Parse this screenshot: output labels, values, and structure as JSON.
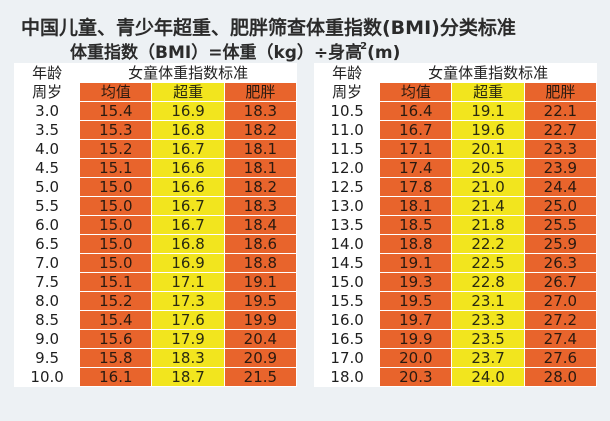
{
  "title": "中国儿童、青少年超重、肥胖筛查体重指数(BMI)分类标准",
  "formula": {
    "text": "体重指数（BMI）=体重（kg）÷身高",
    "exponent": "2",
    "unit": "(m)"
  },
  "boys_table": {
    "age_header": "年龄",
    "group_header": "",
    "sub_age": "周岁",
    "col_avg": "均值",
    "col_over": "超重",
    "col_obese": "肥胖",
    "rows": [
      [
        "3.0",
        "15.4",
        "16.9",
        "18.3"
      ],
      [
        "3.5",
        "15.3",
        "16.8",
        "18.2"
      ],
      [
        "4.0",
        "15.2",
        "16.7",
        "18.1"
      ],
      [
        "4.5",
        "15.1",
        "16.6",
        "18.1"
      ],
      [
        "5.0",
        "15.0",
        "16.6",
        "18.2"
      ],
      [
        "5.5",
        "15.0",
        "16.7",
        "18.3"
      ],
      [
        "6.0",
        "15.0",
        "16.7",
        "18.4"
      ],
      [
        "6.5",
        "15.0",
        "16.8",
        "18.6"
      ],
      [
        "7.0",
        "15.0",
        "16.9",
        "18.8"
      ],
      [
        "7.5",
        "15.1",
        "17.1",
        "19.1"
      ],
      [
        "8.0",
        "15.2",
        "17.3",
        "19.5"
      ],
      [
        "8.5",
        "15.4",
        "17.6",
        "19.9"
      ],
      [
        "9.0",
        "15.6",
        "17.9",
        "20.4"
      ],
      [
        "9.5",
        "15.8",
        "18.3",
        "20.9"
      ],
      [
        "10.0",
        "16.1",
        "18.7",
        "21.5"
      ]
    ]
  },
  "girls_table": {
    "age_header": "年龄",
    "group_header": "女童体重指数标准",
    "sub_age": "周岁",
    "col_avg": "均值",
    "col_over": "超重",
    "col_obese": "肥胖",
    "rows": [
      [
        "10.5",
        "16.4",
        "19.1",
        "22.1"
      ],
      [
        "11.0",
        "16.7",
        "19.6",
        "22.7"
      ],
      [
        "11.5",
        "17.1",
        "20.1",
        "23.3"
      ],
      [
        "12.0",
        "17.4",
        "20.5",
        "23.9"
      ],
      [
        "12.5",
        "17.8",
        "21.0",
        "24.4"
      ],
      [
        "13.0",
        "18.1",
        "21.4",
        "25.0"
      ],
      [
        "13.5",
        "18.5",
        "21.8",
        "25.5"
      ],
      [
        "14.0",
        "18.8",
        "22.2",
        "25.9"
      ],
      [
        "14.5",
        "19.1",
        "22.5",
        "26.3"
      ],
      [
        "15.0",
        "19.3",
        "22.8",
        "26.7"
      ],
      [
        "15.5",
        "19.5",
        "23.1",
        "27.0"
      ],
      [
        "16.0",
        "19.7",
        "23.3",
        "27.2"
      ],
      [
        "16.5",
        "19.9",
        "23.5",
        "27.4"
      ],
      [
        "17.0",
        "20.0",
        "23.7",
        "27.6"
      ],
      [
        "18.0",
        "20.3",
        "24.0",
        "28.0"
      ]
    ]
  },
  "left_group_header": "女童体重指数标准",
  "colors": {
    "average": "#e8642c",
    "overweight": "#f2e51e",
    "obese": "#e8642c",
    "background": "#edf1f4"
  }
}
